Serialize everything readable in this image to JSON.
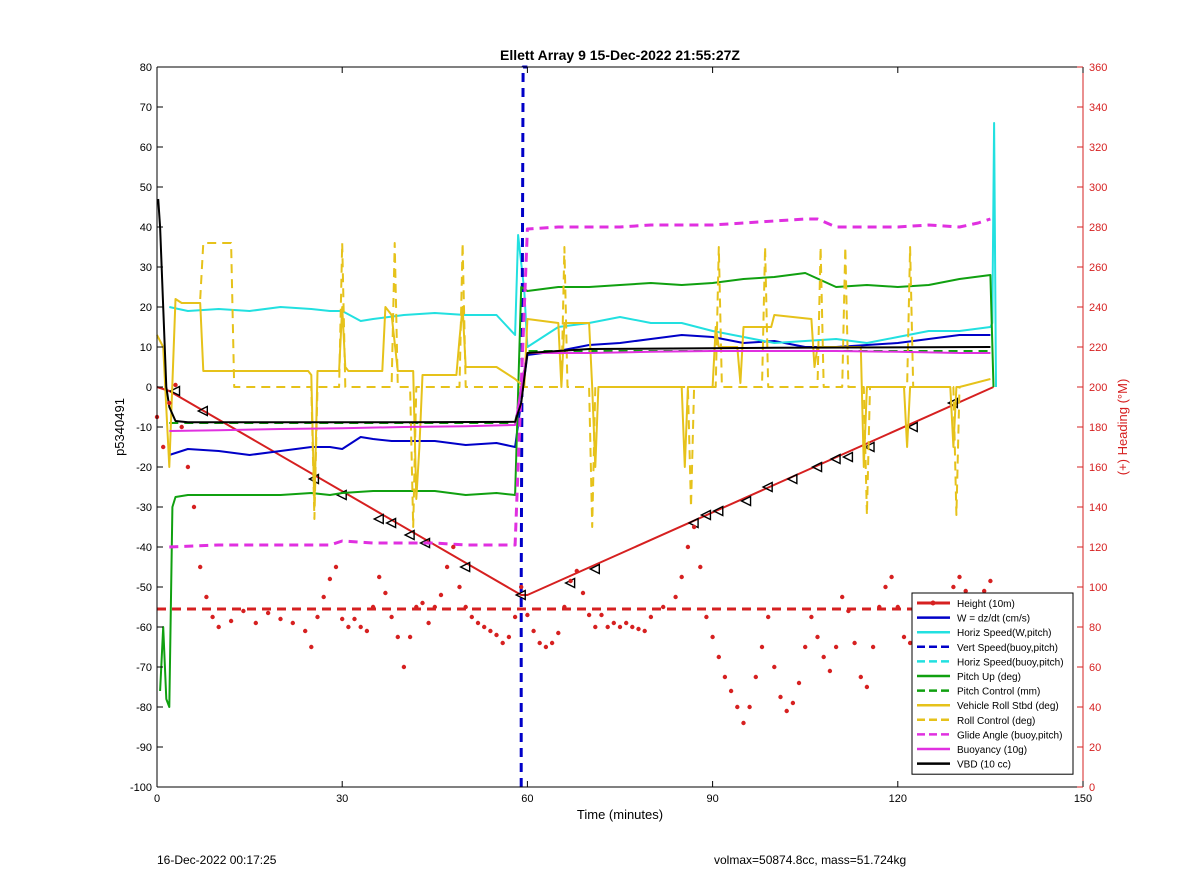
{
  "footer": {
    "left": "16-Dec-2022 00:17:25",
    "right": "volmax=50874.8cc, mass=51.724kg"
  },
  "chart_data": {
    "type": "line",
    "title": "Ellett Array 9 15-Dec-2022 21:55:27Z",
    "xlabel": "Time (minutes)",
    "ylabel": "p5340491",
    "y2label": "(+) Heading (°M)",
    "xlim": [
      0,
      150
    ],
    "ylim": [
      -100,
      80
    ],
    "y2lim": [
      0,
      360
    ],
    "xticks": [
      0,
      30,
      60,
      90,
      120,
      150
    ],
    "yticks": [
      -100,
      -90,
      -80,
      -70,
      -60,
      -50,
      -40,
      -30,
      -20,
      -10,
      0,
      10,
      20,
      30,
      40,
      50,
      60,
      70,
      80
    ],
    "y2ticks": [
      0,
      20,
      40,
      60,
      80,
      100,
      120,
      140,
      160,
      180,
      200,
      220,
      240,
      260,
      280,
      300,
      320,
      340,
      360
    ],
    "grid": false,
    "legend_position": "bottom-right",
    "colors": {
      "height": "#d62020",
      "w": "#0000c8",
      "horiz_speed_w": "#22e0e0",
      "vert_speed_buoy": "#0000c8",
      "horiz_speed_buoy": "#22e0e0",
      "pitch_up": "#10a010",
      "pitch_control": "#10a010",
      "roll": "#e6c21a",
      "roll_control": "#e6c21a",
      "glide_angle": "#e030e0",
      "buoyancy": "#e030e0",
      "vbd": "#000000",
      "heading": "#d62020",
      "right_axis": "#d62020"
    },
    "legend": [
      {
        "key": "height",
        "label": "Height (10m)",
        "style": "solid",
        "marker": true
      },
      {
        "key": "w",
        "label": "W = dz/dt (cm/s)",
        "style": "solid"
      },
      {
        "key": "horiz_speed_w",
        "label": "Horiz Speed(W,pitch)",
        "style": "solid"
      },
      {
        "key": "vert_speed_buoy",
        "label": "Vert Speed(buoy,pitch)",
        "style": "dashed"
      },
      {
        "key": "horiz_speed_buoy",
        "label": "Horiz Speed(buoy,pitch)",
        "style": "dashed"
      },
      {
        "key": "pitch_up",
        "label": "Pitch Up (deg)",
        "style": "solid"
      },
      {
        "key": "pitch_control",
        "label": "Pitch Control (mm)",
        "style": "dashed"
      },
      {
        "key": "roll",
        "label": "Vehicle Roll Stbd (deg)",
        "style": "solid"
      },
      {
        "key": "roll_control",
        "label": "Roll Control (deg)",
        "style": "dashed"
      },
      {
        "key": "glide_angle",
        "label": "Glide Angle (buoy,pitch)",
        "style": "dashed"
      },
      {
        "key": "buoyancy",
        "label": "Buoyancy (10g)",
        "style": "solid"
      },
      {
        "key": "vbd",
        "label": "VBD (10 cc)",
        "style": "solid"
      }
    ],
    "series": [
      {
        "key": "height",
        "axis": "left",
        "style": "solid",
        "width": 2,
        "x": [
          0,
          2,
          59,
          60,
          135.5
        ],
        "y": [
          0,
          -1,
          -52,
          -52,
          0
        ]
      },
      {
        "key": "height_markers",
        "axis": "left",
        "marker": "triangle",
        "x": [
          3,
          7.5,
          25.5,
          30,
          36,
          38,
          41,
          43.5,
          50,
          59,
          67,
          71,
          87,
          89,
          91,
          95.5,
          99,
          103,
          107,
          110,
          112,
          115.5,
          122.5,
          129
        ],
        "y": [
          -1,
          -6,
          -23,
          -27,
          -33,
          -34,
          -37,
          -39,
          -45,
          -52,
          -49,
          -45.5,
          -34,
          -32,
          -31,
          -28.5,
          -25,
          -23,
          -20,
          -18,
          -17.5,
          -15,
          -10,
          -4
        ]
      },
      {
        "key": "w",
        "axis": "left",
        "style": "solid",
        "width": 2,
        "x": [
          2,
          5,
          10,
          15,
          20,
          25,
          28,
          30,
          33,
          35,
          38,
          40,
          45,
          50,
          55,
          58,
          60,
          65,
          70,
          75,
          80,
          85,
          90,
          95,
          100,
          105,
          110,
          115,
          120,
          125,
          130,
          135
        ],
        "y": [
          -17,
          -15.5,
          -16,
          -17,
          -16,
          -15,
          -15,
          -15.5,
          -12.5,
          -13,
          -13.5,
          -13.5,
          -13.5,
          -14.5,
          -14,
          -15,
          8,
          9,
          10.5,
          11,
          12,
          13,
          12.5,
          11,
          11.5,
          10,
          10,
          10.5,
          11,
          12,
          13,
          13
        ]
      },
      {
        "key": "horiz_speed_w",
        "axis": "left",
        "style": "solid",
        "width": 2,
        "x": [
          2,
          5,
          10,
          15,
          20,
          25,
          28,
          30,
          33,
          35,
          40,
          45,
          50,
          55,
          58,
          58.5,
          59.5,
          60,
          65,
          70,
          75,
          80,
          85,
          90,
          95,
          100,
          105,
          110,
          115,
          120,
          125,
          130,
          135,
          135.3,
          135.6,
          135.9
        ],
        "y": [
          20,
          19,
          19.5,
          19,
          20,
          19.5,
          19,
          19,
          16.5,
          17,
          18,
          18.5,
          18,
          18,
          13,
          38,
          24,
          10,
          15,
          16,
          17.5,
          16,
          16,
          14,
          12.5,
          11,
          11.5,
          12,
          11,
          12.5,
          14,
          14,
          15,
          16,
          66,
          0
        ]
      },
      {
        "key": "vert_speed_buoy",
        "axis": "left",
        "style": "dashed",
        "width": 3,
        "x": [
          59,
          59,
          59.3,
          60
        ],
        "y": [
          -100,
          -50,
          80,
          80
        ]
      },
      {
        "key": "pitch_up",
        "axis": "left",
        "style": "solid",
        "width": 2,
        "x": [
          0.5,
          1,
          1.5,
          2,
          2.5,
          3,
          5,
          10,
          15,
          20,
          25,
          28,
          30,
          35,
          40,
          45,
          50,
          55,
          58,
          59,
          60,
          65,
          70,
          75,
          80,
          85,
          90,
          95,
          100,
          105,
          110,
          115,
          120,
          125,
          130,
          135,
          135.5
        ],
        "y": [
          -76,
          -60,
          -78,
          -80,
          -30,
          -27.5,
          -27,
          -27,
          -27,
          -27,
          -26.5,
          -27,
          -26.5,
          -26,
          -26,
          -26,
          -27,
          -26.5,
          -27,
          25,
          24,
          25,
          25,
          25.5,
          26,
          25.5,
          26,
          27,
          27.5,
          28.5,
          25,
          25.5,
          25,
          25.5,
          27,
          28,
          0
        ]
      },
      {
        "key": "pitch_control",
        "axis": "left",
        "style": "dashed",
        "width": 2,
        "x": [
          2,
          58,
          59,
          60,
          135
        ],
        "y": [
          -9,
          -9,
          0,
          9,
          9
        ]
      },
      {
        "key": "roll",
        "axis": "left",
        "style": "solid",
        "width": 2,
        "x": [
          0,
          1,
          2,
          3,
          4,
          7,
          7.5,
          24.5,
          25,
          25.5,
          26,
          29.5,
          30,
          30.5,
          31,
          36.5,
          37,
          38,
          39,
          41.5,
          42,
          42.5,
          43,
          48.5,
          49,
          49.5,
          50,
          55,
          58,
          59.5,
          60,
          65,
          65.5,
          66,
          70,
          70.5,
          71,
          71.5,
          85,
          85.5,
          86,
          86.5,
          90,
          90.5,
          91,
          94,
          94.5,
          95,
          99.5,
          100,
          106,
          106.5,
          107,
          114,
          114.5,
          115,
          115.5,
          121,
          121.5,
          122,
          128.5,
          129,
          129.5,
          130,
          135
        ],
        "y": [
          13,
          10,
          -20,
          22,
          21,
          21,
          4,
          4,
          3,
          -30,
          4,
          4,
          20,
          5,
          4,
          4,
          20,
          18,
          4,
          4,
          -28,
          -15,
          3,
          3,
          12,
          20,
          5,
          5,
          2,
          0,
          17,
          16,
          0,
          16,
          16,
          0,
          -20,
          0,
          0,
          -20,
          0,
          0,
          0,
          15,
          10,
          10,
          1,
          15,
          15,
          18,
          17,
          5,
          10,
          10,
          -20,
          0,
          0,
          0,
          -15,
          0,
          0,
          -15,
          0,
          0,
          2
        ]
      },
      {
        "key": "roll_control",
        "axis": "left",
        "style": "dashed",
        "width": 2,
        "x": [
          7,
          7.5,
          8,
          12,
          12.5,
          13,
          25,
          25.5,
          26,
          29.5,
          30,
          30.5,
          38,
          38.5,
          39,
          41,
          41.5,
          42,
          49,
          49.5,
          50,
          65.5,
          66,
          66.5,
          70,
          70.5,
          71,
          86,
          86.5,
          87,
          90.5,
          91,
          91.5,
          98,
          98.5,
          99,
          107,
          107.5,
          108,
          111,
          111.5,
          112,
          114.5,
          115,
          115.5,
          121.5,
          122,
          122.5,
          129,
          129.5,
          130
        ],
        "y": [
          22,
          36,
          36,
          36,
          0,
          0,
          0,
          -33,
          0,
          0,
          36,
          0,
          0,
          36,
          0,
          0,
          -35,
          0,
          0,
          36,
          0,
          0,
          35,
          0,
          0,
          -35,
          0,
          0,
          -30,
          0,
          0,
          35,
          0,
          0,
          35,
          0,
          0,
          35,
          0,
          0,
          35,
          0,
          0,
          -32,
          0,
          0,
          35,
          0,
          0,
          -32,
          0
        ]
      },
      {
        "key": "glide_angle",
        "axis": "left",
        "style": "dashed",
        "width": 3,
        "x": [
          2,
          10,
          20,
          28,
          30,
          35,
          40,
          45,
          50,
          55,
          58,
          59,
          60,
          65,
          70,
          75,
          80,
          85,
          90,
          95,
          100,
          105,
          107,
          110,
          115,
          120,
          125,
          130,
          133,
          135
        ],
        "y": [
          -40,
          -39.5,
          -39.5,
          -39.5,
          -38.5,
          -39,
          -39,
          -39,
          -39.5,
          -39.5,
          -39.5,
          0,
          39.5,
          40,
          40,
          40,
          40.5,
          40.5,
          40.5,
          41,
          41.5,
          42,
          42,
          40,
          40,
          40,
          40.5,
          40,
          41,
          42
        ]
      },
      {
        "key": "buoyancy",
        "axis": "left",
        "style": "solid",
        "width": 2,
        "x": [
          2,
          10,
          20,
          30,
          40,
          50,
          58,
          59,
          60,
          70,
          80,
          90,
          100,
          110,
          120,
          130,
          135
        ],
        "y": [
          -11,
          -10.8,
          -10.5,
          -10.3,
          -10,
          -9.8,
          -9.5,
          0,
          8.5,
          8.5,
          8.8,
          9,
          9,
          9,
          8.8,
          8.5,
          8.5
        ]
      },
      {
        "key": "vbd",
        "axis": "left",
        "style": "solid",
        "width": 2,
        "x": [
          0.2,
          0.5,
          1,
          1.5,
          2,
          3,
          5,
          20,
          40,
          58,
          59,
          60,
          70,
          100,
          135
        ],
        "y": [
          47,
          40,
          20,
          0,
          -5,
          -8.5,
          -8.8,
          -8.8,
          -8.8,
          -8.7,
          -4,
          8.5,
          9.5,
          9.8,
          10
        ]
      },
      {
        "key": "heading_mean",
        "axis": "right",
        "style": "dashed",
        "width": 3,
        "x": [
          0,
          135
        ],
        "y": [
          89,
          89
        ]
      },
      {
        "key": "heading",
        "axis": "right",
        "style": "dots",
        "x": [
          0,
          1,
          2,
          3,
          4,
          5,
          6,
          7,
          8,
          9,
          10,
          12,
          14,
          16,
          18,
          20,
          22,
          24,
          25,
          26,
          27,
          28,
          29,
          30,
          31,
          32,
          33,
          34,
          35,
          36,
          37,
          38,
          39,
          40,
          41,
          42,
          43,
          44,
          45,
          46,
          47,
          48,
          49,
          50,
          51,
          52,
          53,
          54,
          55,
          56,
          57,
          58,
          59,
          60,
          61,
          62,
          63,
          64,
          65,
          66,
          67,
          68,
          69,
          70,
          71,
          72,
          73,
          74,
          75,
          76,
          77,
          78,
          79,
          80,
          82,
          84,
          85,
          86,
          87,
          88,
          89,
          90,
          91,
          92,
          93,
          94,
          95,
          96,
          97,
          98,
          99,
          100,
          101,
          102,
          103,
          104,
          105,
          106,
          107,
          108,
          109,
          110,
          111,
          112,
          113,
          114,
          115,
          116,
          117,
          118,
          119,
          120,
          121,
          122,
          123,
          124,
          125,
          126,
          127,
          128,
          129,
          130,
          131,
          132,
          133,
          134,
          135
        ],
        "y": [
          185,
          170,
          192,
          201,
          180,
          160,
          140,
          110,
          95,
          85,
          80,
          83,
          88,
          82,
          87,
          84,
          82,
          78,
          70,
          85,
          95,
          104,
          110,
          84,
          80,
          84,
          80,
          78,
          90,
          105,
          97,
          85,
          75,
          60,
          75,
          90,
          92,
          82,
          90,
          96,
          110,
          120,
          100,
          90,
          85,
          82,
          80,
          78,
          76,
          72,
          75,
          85,
          100,
          86,
          78,
          72,
          70,
          72,
          77,
          90,
          103,
          108,
          97,
          86,
          80,
          86,
          80,
          82,
          80,
          82,
          80,
          79,
          78,
          85,
          90,
          95,
          105,
          120,
          130,
          110,
          85,
          75,
          65,
          55,
          48,
          40,
          32,
          40,
          55,
          70,
          85,
          60,
          45,
          38,
          42,
          52,
          70,
          85,
          75,
          65,
          58,
          70,
          95,
          88,
          72,
          55,
          50,
          70,
          90,
          100,
          105,
          90,
          75,
          72,
          70,
          74,
          80,
          82,
          75,
          88,
          100,
          105,
          98,
          92,
          90,
          98,
          103
        ]
      }
    ]
  }
}
